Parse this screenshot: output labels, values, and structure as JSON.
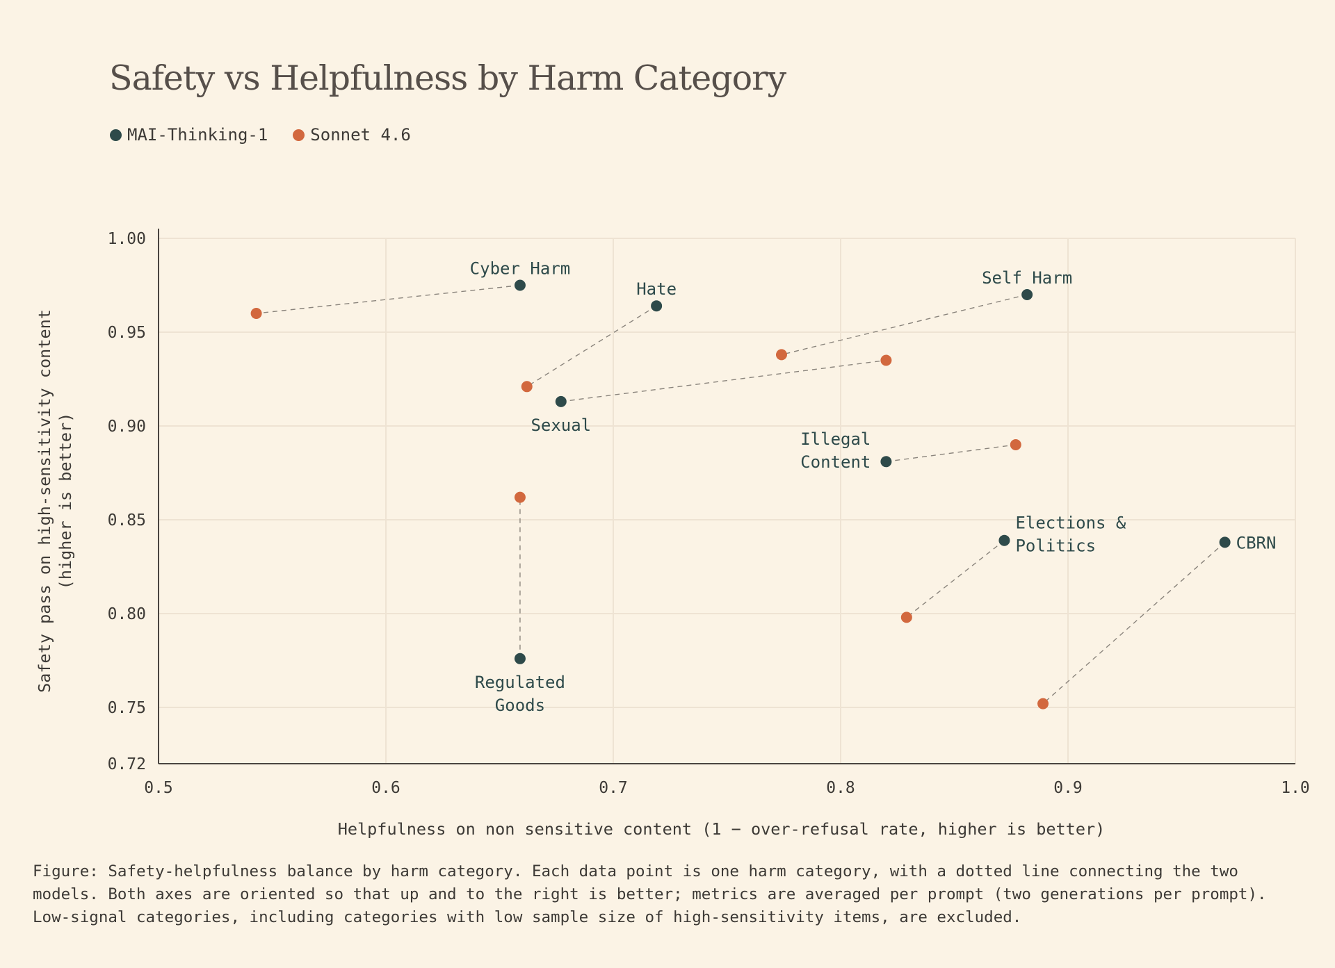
{
  "colors": {
    "background": "#fbf3e5",
    "model_a": "#2e4a4a",
    "model_b": "#d2683e",
    "grid": "#eee3d3",
    "axis": "#4a4540",
    "connector": "#8a847c",
    "label": "#2e4a4a"
  },
  "chart_data": {
    "type": "scatter",
    "title": "Safety vs Helpfulness by Harm Category",
    "xlabel": "Helpfulness on non sensitive content (1 − over-refusal rate, higher is better)",
    "ylabel_lines": [
      "Safety pass on high-sensitivity content",
      "(higher is better)"
    ],
    "xlim": [
      0.5,
      1.0
    ],
    "ylim": [
      0.72,
      1.0
    ],
    "x_ticks": [
      {
        "value": 0.5,
        "label": "0.5"
      },
      {
        "value": 0.6,
        "label": "0.6"
      },
      {
        "value": 0.7,
        "label": "0.7"
      },
      {
        "value": 0.8,
        "label": "0.8"
      },
      {
        "value": 0.9,
        "label": "0.9"
      },
      {
        "value": 1.0,
        "label": "1.0"
      }
    ],
    "y_ticks": [
      {
        "value": 0.72,
        "label": "0.72"
      },
      {
        "value": 0.75,
        "label": "0.75"
      },
      {
        "value": 0.8,
        "label": "0.80"
      },
      {
        "value": 0.85,
        "label": "0.85"
      },
      {
        "value": 0.9,
        "label": "0.90"
      },
      {
        "value": 0.95,
        "label": "0.95"
      },
      {
        "value": 1.0,
        "label": "1.00"
      }
    ],
    "grid": true,
    "legend_position": "top-left",
    "series": [
      {
        "name": "MAI-Thinking-1",
        "color": "#2e4a4a"
      },
      {
        "name": "Sonnet 4.6",
        "color": "#d2683e"
      }
    ],
    "categories": [
      {
        "label_lines": [
          "Cyber Harm"
        ],
        "a": [
          0.659,
          0.975
        ],
        "b": [
          0.543,
          0.96
        ],
        "label_pos": "above"
      },
      {
        "label_lines": [
          "Hate"
        ],
        "a": [
          0.719,
          0.964
        ],
        "b": [
          0.662,
          0.921
        ],
        "label_pos": "above"
      },
      {
        "label_lines": [
          "Self Harm"
        ],
        "a": [
          0.882,
          0.97
        ],
        "b": [
          0.774,
          0.938
        ],
        "label_pos": "above"
      },
      {
        "label_lines": [
          "Sexual"
        ],
        "a": [
          0.677,
          0.913
        ],
        "b": [
          0.82,
          0.935
        ],
        "label_pos": "below"
      },
      {
        "label_lines": [
          "Illegal",
          "Content"
        ],
        "a": [
          0.82,
          0.881
        ],
        "b": [
          0.877,
          0.89
        ],
        "label_pos": "left"
      },
      {
        "label_lines": [
          "Regulated",
          "Goods"
        ],
        "a": [
          0.659,
          0.776
        ],
        "b": [
          0.659,
          0.862
        ],
        "label_pos": "below"
      },
      {
        "label_lines": [
          "Elections &",
          "Politics"
        ],
        "a": [
          0.872,
          0.839
        ],
        "b": [
          0.829,
          0.798
        ],
        "label_pos": "right"
      },
      {
        "label_lines": [
          "CBRN"
        ],
        "a": [
          0.969,
          0.838
        ],
        "b": [
          0.889,
          0.752
        ],
        "label_pos": "right"
      }
    ]
  },
  "caption": "Figure: Safety-helpfulness balance by harm category. Each data point is one harm category, with a dotted line connecting the two models. Both axes are oriented so that up and to the right is better; metrics are averaged per prompt (two generations per prompt). Low-signal categories, including categories with low sample size of high-sensitivity items, are excluded."
}
